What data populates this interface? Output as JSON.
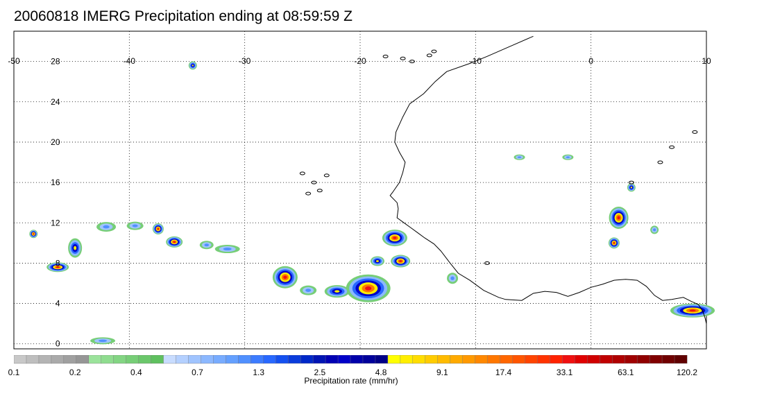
{
  "title": "20060818 IMERG Precipitation ending at 08:59:59 Z",
  "map": {
    "lon_range": [
      -50,
      10
    ],
    "lat_range": [
      -0.5,
      31
    ],
    "lon_ticks": [
      -50,
      -40,
      -30,
      -20,
      -10,
      0,
      10
    ],
    "lon_tick_labels": [
      "-50",
      "-40",
      "-30",
      "-20",
      "-10",
      "0",
      "10"
    ],
    "lat_ticks": [
      0,
      4,
      8,
      12,
      16,
      20,
      24,
      28
    ],
    "lat_tick_labels": [
      "0",
      "4",
      "8",
      "12",
      "16",
      "20",
      "24",
      "28"
    ],
    "grid": "dotted"
  },
  "colorbar": {
    "label": "Precipitation rate (mm/hr)",
    "tick_labels": [
      "0.1",
      "0.2",
      "0.4",
      "0.7",
      "1.3",
      "2.5",
      "4.8",
      "9.1",
      "17.4",
      "33.1",
      "63.1",
      "120.2"
    ],
    "colors": [
      "#c8c8c8",
      "#bebebe",
      "#b4b4b4",
      "#aaaaaa",
      "#a0a0a0",
      "#969696",
      "#9be39b",
      "#8fdc8f",
      "#83d583",
      "#77ce77",
      "#6bc76b",
      "#5fc05f",
      "#c8dcff",
      "#b4d0ff",
      "#a0c4ff",
      "#8cb8ff",
      "#78acff",
      "#64a0ff",
      "#5090ff",
      "#3c7cff",
      "#2868ff",
      "#1450f0",
      "#0a3cdc",
      "#0028c8",
      "#0014b4",
      "#0000b4",
      "#0000c8",
      "#0000aa",
      "#00009b",
      "#000087",
      "#ffff00",
      "#ffee00",
      "#ffdd00",
      "#ffcc00",
      "#ffbb00",
      "#ffaa00",
      "#ff9900",
      "#ff8800",
      "#ff7700",
      "#ff6600",
      "#ff5500",
      "#ff4400",
      "#ff3300",
      "#ff2200",
      "#f01010",
      "#e00000",
      "#d00000",
      "#c00000",
      "#b00000",
      "#a00000",
      "#900000",
      "#800000",
      "#700000",
      "#600000"
    ]
  }
}
